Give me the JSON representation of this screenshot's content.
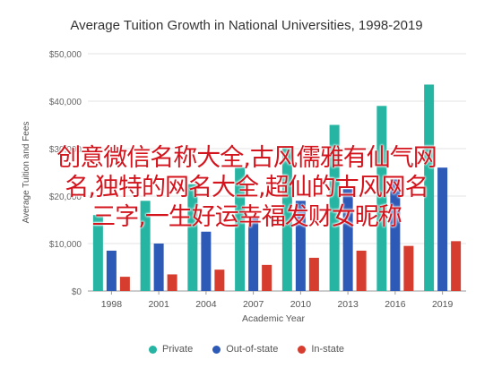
{
  "chart_data": {
    "type": "bar",
    "title": "Average Tuition Growth in National Universities, 1998-2019",
    "xlabel": "Academic Year",
    "ylabel": "Average Tuition and Fees",
    "categories": [
      "1998",
      "2001",
      "2004",
      "2007",
      "2010",
      "2013",
      "2016",
      "2019"
    ],
    "series": [
      {
        "name": "Private",
        "color": "#26b5a2",
        "values": [
          16000,
          19000,
          22500,
          26000,
          30500,
          35000,
          39000,
          43500
        ]
      },
      {
        "name": "Out-of-state",
        "color": "#2d59b7",
        "values": [
          8500,
          10000,
          12500,
          15500,
          19000,
          21500,
          23500,
          26000
        ]
      },
      {
        "name": "In-state",
        "color": "#d63d2e",
        "values": [
          3000,
          3500,
          4500,
          5500,
          7000,
          8500,
          9500,
          10500
        ]
      }
    ],
    "ylim": [
      0,
      50000
    ],
    "yticks": [
      "$0",
      "$10,000",
      "$20,000",
      "$30,000",
      "$40,000",
      "$50,000"
    ],
    "grid": true,
    "legend_position": "bottom"
  },
  "overlay": {
    "lines": [
      "创意微信名称大全,古风儒雅有仙气网",
      "名,独特的网名大全,超仙的古风网名",
      "三字,一生好运幸福发财女昵称"
    ]
  }
}
